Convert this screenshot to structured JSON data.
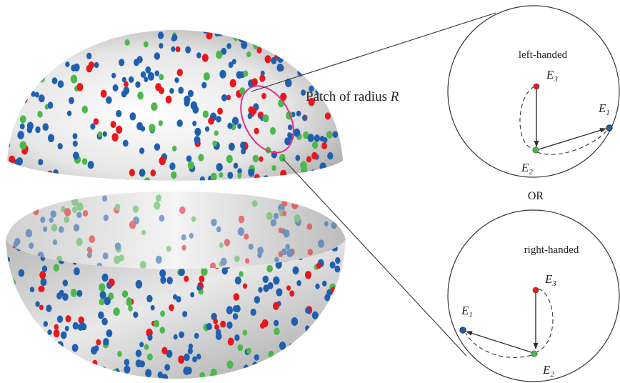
{
  "figure": {
    "patch_label": "Patch of radius ",
    "patch_symbol": "R",
    "or_label": "OR",
    "top_panel": {
      "title": "left-handed",
      "e3": {
        "base": "E",
        "sub": "3"
      },
      "e2": {
        "base": "E",
        "sub": "2"
      },
      "e1": {
        "base": "E",
        "sub": "1"
      }
    },
    "bottom_panel": {
      "title": "right-handed",
      "e3": {
        "base": "E",
        "sub": "3"
      },
      "e2": {
        "base": "E",
        "sub": "2"
      },
      "e1": {
        "base": "E",
        "sub": "1"
      }
    }
  },
  "colors": {
    "red_dot": "#e8171c",
    "green_dot": "#4cb84c",
    "blue_dot": "#1f5fb0",
    "patch_ring": "#e0308a",
    "sphere_light": "#f6f6f6",
    "sphere_dark": "#a8a8a8",
    "line": "#333333"
  }
}
